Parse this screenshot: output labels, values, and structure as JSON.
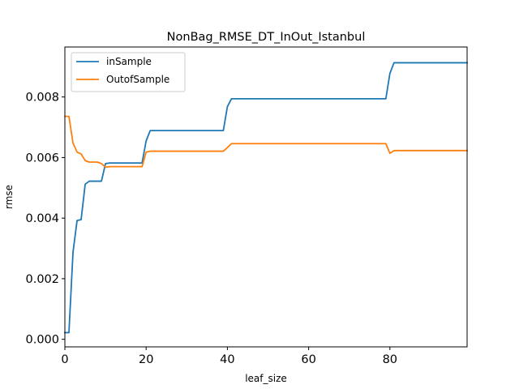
{
  "chart_data": {
    "type": "line",
    "title": "NonBag_RMSE_DT_InOut_Istanbul",
    "xlabel": "leaf_size",
    "ylabel": "rmse",
    "xlim": [
      0,
      99
    ],
    "ylim": [
      -0.00025,
      0.00965
    ],
    "xticks": [
      0,
      20,
      40,
      60,
      80
    ],
    "xtick_labels": [
      "0",
      "20",
      "40",
      "60",
      "80"
    ],
    "yticks": [
      0,
      0.002,
      0.004,
      0.006,
      0.008
    ],
    "ytick_labels": [
      "0.000",
      "0.002",
      "0.004",
      "0.006",
      "0.008"
    ],
    "grid": false,
    "legend_position": "upper-left",
    "series": [
      {
        "name": "inSample",
        "color": "#1f77b4",
        "x": [
          0,
          1,
          2,
          3,
          4,
          5,
          6,
          7,
          8,
          9,
          10,
          11,
          12,
          13,
          14,
          15,
          16,
          17,
          18,
          19,
          20,
          21,
          22,
          23,
          24,
          25,
          26,
          27,
          28,
          29,
          30,
          31,
          32,
          33,
          34,
          35,
          36,
          37,
          38,
          39,
          40,
          41,
          42,
          43,
          44,
          45,
          46,
          47,
          48,
          49,
          50,
          51,
          52,
          53,
          54,
          55,
          56,
          57,
          58,
          59,
          60,
          61,
          62,
          63,
          64,
          65,
          66,
          67,
          68,
          69,
          70,
          71,
          72,
          73,
          74,
          75,
          76,
          77,
          78,
          79,
          80,
          81,
          82,
          83,
          84,
          85,
          86,
          87,
          88,
          89,
          90,
          91,
          92,
          93,
          94,
          95,
          96,
          97,
          98,
          99
        ],
        "y": [
          0.00022,
          0.00022,
          0.00287,
          0.00392,
          0.00395,
          0.00512,
          0.00522,
          0.00522,
          0.00522,
          0.00522,
          0.0058,
          0.00582,
          0.00582,
          0.00582,
          0.00582,
          0.00582,
          0.00582,
          0.00582,
          0.00582,
          0.00582,
          0.00655,
          0.00689,
          0.00689,
          0.00689,
          0.00689,
          0.00689,
          0.00689,
          0.00689,
          0.00689,
          0.00689,
          0.00689,
          0.00689,
          0.00689,
          0.00689,
          0.00689,
          0.00689,
          0.00689,
          0.00689,
          0.00689,
          0.00689,
          0.00768,
          0.00794,
          0.00794,
          0.00794,
          0.00794,
          0.00794,
          0.00794,
          0.00794,
          0.00794,
          0.00794,
          0.00794,
          0.00794,
          0.00794,
          0.00794,
          0.00794,
          0.00794,
          0.00794,
          0.00794,
          0.00794,
          0.00794,
          0.00794,
          0.00794,
          0.00794,
          0.00794,
          0.00794,
          0.00794,
          0.00794,
          0.00794,
          0.00794,
          0.00794,
          0.00794,
          0.00794,
          0.00794,
          0.00794,
          0.00794,
          0.00794,
          0.00794,
          0.00794,
          0.00794,
          0.00794,
          0.00878,
          0.00913,
          0.00913,
          0.00913,
          0.00913,
          0.00913,
          0.00913,
          0.00913,
          0.00913,
          0.00913,
          0.00913,
          0.00913,
          0.00913,
          0.00913,
          0.00913,
          0.00913,
          0.00913,
          0.00913,
          0.00913,
          0.00913
        ]
      },
      {
        "name": "OutofSample",
        "color": "#ff7f0e",
        "x": [
          0,
          1,
          2,
          3,
          4,
          5,
          6,
          7,
          8,
          9,
          10,
          11,
          12,
          13,
          14,
          15,
          16,
          17,
          18,
          19,
          20,
          21,
          22,
          23,
          24,
          25,
          26,
          27,
          28,
          29,
          30,
          31,
          32,
          33,
          34,
          35,
          36,
          37,
          38,
          39,
          40,
          41,
          42,
          43,
          44,
          45,
          46,
          47,
          48,
          49,
          50,
          51,
          52,
          53,
          54,
          55,
          56,
          57,
          58,
          59,
          60,
          61,
          62,
          63,
          64,
          65,
          66,
          67,
          68,
          69,
          70,
          71,
          72,
          73,
          74,
          75,
          76,
          77,
          78,
          79,
          80,
          81,
          82,
          83,
          84,
          85,
          86,
          87,
          88,
          89,
          90,
          91,
          92,
          93,
          94,
          95,
          96,
          97,
          98,
          99
        ],
        "y": [
          0.00736,
          0.00736,
          0.00648,
          0.00618,
          0.00612,
          0.0059,
          0.00585,
          0.00585,
          0.00585,
          0.0058,
          0.00568,
          0.0057,
          0.0057,
          0.0057,
          0.0057,
          0.0057,
          0.0057,
          0.0057,
          0.0057,
          0.0057,
          0.00618,
          0.00621,
          0.00621,
          0.00621,
          0.00621,
          0.00621,
          0.00621,
          0.00621,
          0.00621,
          0.00621,
          0.00621,
          0.00621,
          0.00621,
          0.00621,
          0.00621,
          0.00621,
          0.00621,
          0.00621,
          0.00621,
          0.00621,
          0.00633,
          0.00646,
          0.00646,
          0.00646,
          0.00646,
          0.00646,
          0.00646,
          0.00646,
          0.00646,
          0.00646,
          0.00646,
          0.00646,
          0.00646,
          0.00646,
          0.00646,
          0.00646,
          0.00646,
          0.00646,
          0.00646,
          0.00646,
          0.00646,
          0.00646,
          0.00646,
          0.00646,
          0.00646,
          0.00646,
          0.00646,
          0.00646,
          0.00646,
          0.00646,
          0.00646,
          0.00646,
          0.00646,
          0.00646,
          0.00646,
          0.00646,
          0.00646,
          0.00646,
          0.00646,
          0.00646,
          0.00614,
          0.00623,
          0.00623,
          0.00623,
          0.00623,
          0.00623,
          0.00623,
          0.00623,
          0.00623,
          0.00623,
          0.00623,
          0.00623,
          0.00623,
          0.00623,
          0.00623,
          0.00623,
          0.00623,
          0.00623,
          0.00623,
          0.00623
        ]
      }
    ]
  }
}
